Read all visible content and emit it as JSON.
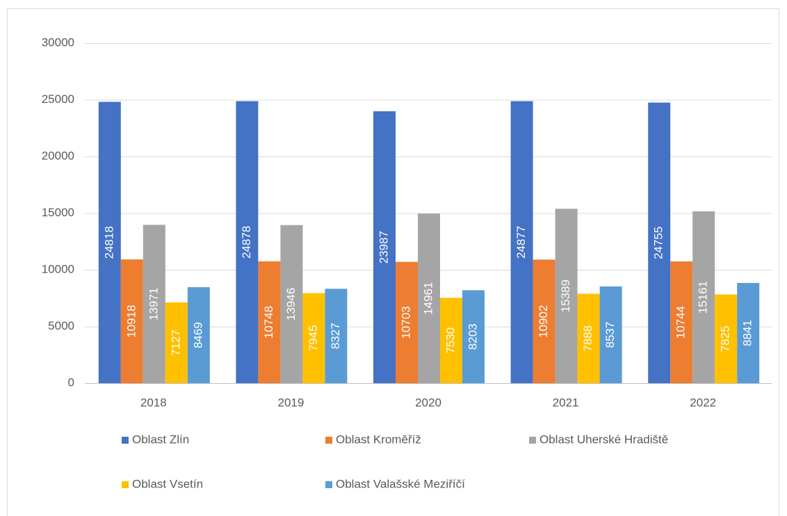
{
  "chart_data": {
    "type": "bar",
    "categories": [
      "2018",
      "2019",
      "2020",
      "2021",
      "2022"
    ],
    "series": [
      {
        "name": "Oblast Zlín",
        "color": "#4472c4",
        "values": [
          24818,
          24878,
          23987,
          24877,
          24755
        ]
      },
      {
        "name": "Oblast Kroměříž",
        "color": "#ed7d31",
        "values": [
          10918,
          10748,
          10703,
          10902,
          10744
        ]
      },
      {
        "name": "Oblast Uherské Hradiště",
        "color": "#a5a5a5",
        "values": [
          13971,
          13946,
          14961,
          15389,
          15161
        ]
      },
      {
        "name": "Oblast Vsetín",
        "color": "#ffc000",
        "values": [
          7127,
          7945,
          7530,
          7888,
          7825
        ]
      },
      {
        "name": "Oblast Valašské Meziříčí",
        "color": "#5b9bd5",
        "values": [
          8469,
          8327,
          8203,
          8537,
          8841
        ]
      }
    ],
    "ylim": [
      0,
      30000
    ],
    "yticks": [
      0,
      5000,
      10000,
      15000,
      20000,
      25000,
      30000
    ],
    "grid": true,
    "legend": "bottom",
    "data_labels": true
  }
}
